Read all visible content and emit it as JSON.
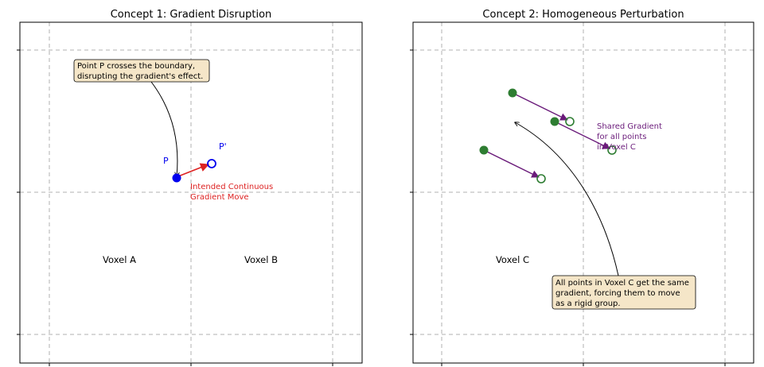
{
  "panel1": {
    "title": "Concept 1: Gradient Disruption",
    "voxel_left": "Voxel A",
    "voxel_right": "Voxel B",
    "point_label": "P",
    "point_moved_label": "P'",
    "move_label_line1": "Intended Continuous",
    "move_label_line2": "Gradient Move",
    "callout_line1": "Point P crosses the boundary,",
    "callout_line2": "disrupting the gradient's effect."
  },
  "panel2": {
    "title": "Concept 2: Homogeneous Perturbation",
    "voxel": "Voxel C",
    "gradient_label_line1": "Shared Gradient",
    "gradient_label_line2": "for all points",
    "gradient_label_line3": "in Voxel C",
    "callout_line1": "All points in Voxel C get the same",
    "callout_line2": "gradient, forcing them to move",
    "callout_line3": "as a rigid group."
  },
  "colors": {
    "point_blue": "#0000ee",
    "arrow_red": "#dd2222",
    "move_text_red": "#dd2222",
    "point_green": "#2e7d32",
    "arrow_purple": "#6a1b7a",
    "callout_fill": "#f5e6c8",
    "grid_gray": "#b0b0b0"
  }
}
